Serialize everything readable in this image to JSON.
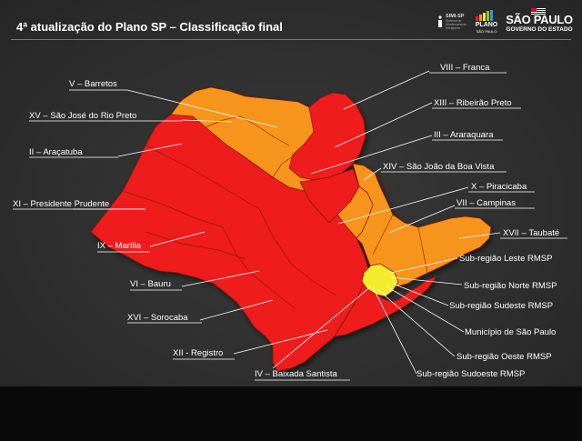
{
  "header": {
    "title": "4ª atualização do Plano SP – Classificação final"
  },
  "logos": {
    "sims": {
      "name": "SIMI-SP",
      "subtitle": "Sistema de Monitoramento Inteligente"
    },
    "plano": {
      "name": "PLANO",
      "subtitle": "SÃO PAULO"
    },
    "state": {
      "name": "SÃO PAULO",
      "subtitle": "GOVERNO DO ESTADO"
    }
  },
  "legend_colors": {
    "red": "#ee1c1c",
    "orange": "#f7941d",
    "yellow": "#f2ec2a"
  },
  "regions": {
    "barretos": "V – Barretos",
    "sao_jose_rio_preto": "XV – São José do Rio Preto",
    "aracatuba": "II – Araçatuba",
    "presidente_prudente": "XI – Presidente Prudente",
    "marilia": "IX – Marília",
    "bauru": "VI – Bauru",
    "sorocaba": "XVI – Sorocaba",
    "registro": "XII - Registro",
    "baixada_santista": "IV – Baixada Santista",
    "franca": "VIII – Franca",
    "ribeirao_preto": "XIII – Ribeirão Preto",
    "araraquara": "III – Araraquara",
    "sao_joao_boa_vista": "XIV – São João da Boa Vista",
    "piracicaba": "X – Piracicaba",
    "campinas": "VII – Campinas",
    "taubate": "XVII – Taubaté",
    "rmsp_leste": "Sub-região Leste RMSP",
    "rmsp_norte": "Sub-região Norte RMSP",
    "rmsp_sudeste": "Sub-região Sudeste RMSP",
    "municipio_sp": "Município de São Paulo",
    "rmsp_oeste": "Sub-região Oeste RMSP",
    "rmsp_sudoeste": "Sub-região Sudoeste RMSP"
  }
}
